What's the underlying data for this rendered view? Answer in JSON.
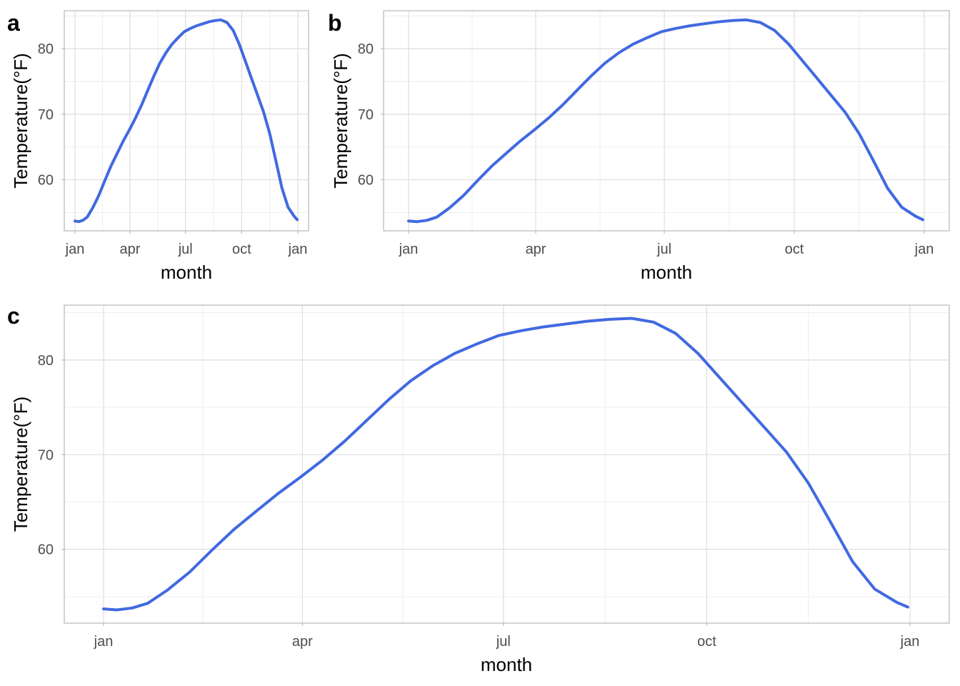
{
  "panels": [
    {
      "tag": "a"
    },
    {
      "tag": "b"
    },
    {
      "tag": "c"
    }
  ],
  "chart_data": [
    {
      "type": "line",
      "panel": "a",
      "title": "",
      "xlabel": "month",
      "ylabel": "Temperature(°F)",
      "x_ticks": [
        "jan",
        "apr",
        "jul",
        "oct",
        "jan"
      ],
      "y_ticks": [
        60,
        70,
        80
      ],
      "ylim": [
        52.2,
        85.8
      ],
      "grid": true,
      "line_color": "#4169E1",
      "series": [
        {
          "x": [
            1,
            7,
            14,
            21,
            30,
            40,
            50,
            60,
            70,
            80,
            90,
            100,
            110,
            120,
            130,
            140,
            150,
            160,
            170,
            180,
            190,
            200,
            210,
            220,
            230,
            240,
            250,
            260,
            270,
            280,
            290,
            300,
            310,
            320,
            330,
            340,
            350,
            360,
            365
          ],
          "values": [
            53.7,
            53.6,
            53.8,
            54.3,
            55.7,
            57.6,
            59.9,
            62.1,
            64.0,
            65.9,
            67.6,
            69.4,
            71.4,
            73.6,
            75.8,
            77.8,
            79.4,
            80.7,
            81.7,
            82.6,
            83.1,
            83.5,
            83.8,
            84.1,
            84.3,
            84.4,
            84.0,
            82.8,
            80.7,
            78.1,
            75.5,
            72.9,
            70.3,
            67.0,
            62.9,
            58.7,
            55.8,
            54.4,
            53.9
          ]
        }
      ]
    },
    {
      "type": "line",
      "panel": "b",
      "title": "",
      "xlabel": "month",
      "ylabel": "Temperature(°F)",
      "x_ticks": [
        "jan",
        "apr",
        "jul",
        "oct",
        "jan"
      ],
      "y_ticks": [
        60,
        70,
        80
      ],
      "ylim": [
        52.2,
        85.8
      ],
      "grid": true,
      "line_color": "#4169E1",
      "series": [
        {
          "x": [
            1,
            7,
            14,
            21,
            30,
            40,
            50,
            60,
            70,
            80,
            90,
            100,
            110,
            120,
            130,
            140,
            150,
            160,
            170,
            180,
            190,
            200,
            210,
            220,
            230,
            240,
            250,
            260,
            270,
            280,
            290,
            300,
            310,
            320,
            330,
            340,
            350,
            360,
            365
          ],
          "values": [
            53.7,
            53.6,
            53.8,
            54.3,
            55.7,
            57.6,
            59.9,
            62.1,
            64.0,
            65.9,
            67.6,
            69.4,
            71.4,
            73.6,
            75.8,
            77.8,
            79.4,
            80.7,
            81.7,
            82.6,
            83.1,
            83.5,
            83.8,
            84.1,
            84.3,
            84.4,
            84.0,
            82.8,
            80.7,
            78.1,
            75.5,
            72.9,
            70.3,
            67.0,
            62.9,
            58.7,
            55.8,
            54.4,
            53.9
          ]
        }
      ]
    },
    {
      "type": "line",
      "panel": "c",
      "title": "",
      "xlabel": "month",
      "ylabel": "Temperature(°F)",
      "x_ticks": [
        "jan",
        "apr",
        "jul",
        "oct",
        "jan"
      ],
      "y_ticks": [
        60,
        70,
        80
      ],
      "ylim": [
        52.2,
        85.8
      ],
      "grid": true,
      "line_color": "#4169E1",
      "series": [
        {
          "x": [
            1,
            7,
            14,
            21,
            30,
            40,
            50,
            60,
            70,
            80,
            90,
            100,
            110,
            120,
            130,
            140,
            150,
            160,
            170,
            180,
            190,
            200,
            210,
            220,
            230,
            240,
            250,
            260,
            270,
            280,
            290,
            300,
            310,
            320,
            330,
            340,
            350,
            360,
            365
          ],
          "values": [
            53.7,
            53.6,
            53.8,
            54.3,
            55.7,
            57.6,
            59.9,
            62.1,
            64.0,
            65.9,
            67.6,
            69.4,
            71.4,
            73.6,
            75.8,
            77.8,
            79.4,
            80.7,
            81.7,
            82.6,
            83.1,
            83.5,
            83.8,
            84.1,
            84.3,
            84.4,
            84.0,
            82.8,
            80.7,
            78.1,
            75.5,
            72.9,
            70.3,
            67.0,
            62.9,
            58.7,
            55.8,
            54.4,
            53.9
          ]
        }
      ]
    }
  ]
}
